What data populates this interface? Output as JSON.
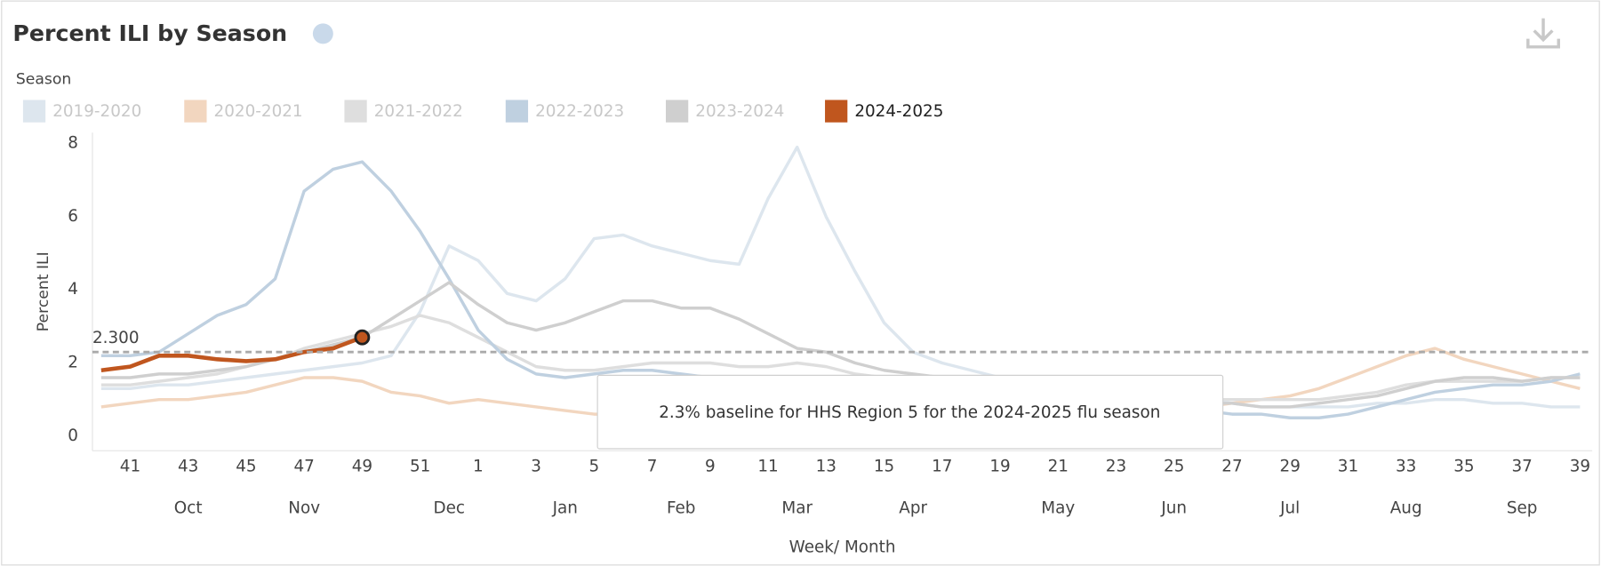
{
  "chart_data": {
    "type": "line",
    "title": "Percent ILI by Season",
    "legend_title": "Season",
    "y_label": "Percent ILI",
    "x_label": "Week/ Month",
    "categories": [
      null,
      "41",
      null,
      "43",
      null,
      "45",
      null,
      "47",
      null,
      "49",
      null,
      "51",
      null,
      "1",
      null,
      "3",
      null,
      "5",
      null,
      "7",
      null,
      "9",
      null,
      "11",
      null,
      "13",
      null,
      "15",
      null,
      "17",
      null,
      "19",
      null,
      "21",
      null,
      "23",
      null,
      "25",
      null,
      "27",
      null,
      "29",
      null,
      "31",
      null,
      "33",
      null,
      "35",
      null,
      "37",
      null,
      "39"
    ],
    "months": [
      null,
      null,
      null,
      "Oct",
      null,
      null,
      null,
      "Nov",
      null,
      null,
      null,
      null,
      "Dec",
      null,
      null,
      null,
      "Jan",
      null,
      null,
      null,
      "Feb",
      null,
      null,
      null,
      "Mar",
      null,
      null,
      null,
      "Apr",
      null,
      null,
      null,
      null,
      "May",
      null,
      null,
      null,
      "Jun",
      null,
      null,
      null,
      "Jul",
      null,
      null,
      null,
      "Aug",
      null,
      null,
      null,
      "Sep",
      null,
      null
    ],
    "ylim": [
      -0.4,
      8.3
    ],
    "yticks": [
      0,
      2,
      4,
      6,
      8
    ],
    "baseline": {
      "value": 2.3,
      "label": "2.300"
    },
    "tooltip": "2.3% baseline for HHS Region 5 for the 2024-2025 flu season",
    "series": [
      {
        "name": "2019-2020",
        "color": "#dde6ee",
        "values": [
          1.3,
          1.3,
          1.4,
          1.4,
          1.5,
          1.6,
          1.7,
          1.8,
          1.9,
          2.0,
          2.2,
          3.4,
          5.2,
          4.8,
          3.9,
          3.7,
          4.3,
          5.4,
          5.5,
          5.2,
          5.0,
          4.8,
          4.7,
          6.5,
          7.9,
          6.0,
          4.5,
          3.1,
          2.3,
          2.0,
          1.8,
          1.6,
          1.5,
          1.4,
          1.3,
          1.2,
          1.1,
          1.0,
          1.0,
          0.9,
          0.8,
          0.8,
          0.8,
          0.8,
          0.9,
          0.9,
          1.0,
          1.0,
          0.9,
          0.9,
          0.8,
          0.8
        ]
      },
      {
        "name": "2020-2021",
        "color": "#f2d6bf",
        "values": [
          0.8,
          0.9,
          1.0,
          1.0,
          1.1,
          1.2,
          1.4,
          1.6,
          1.6,
          1.5,
          1.2,
          1.1,
          0.9,
          1.0,
          0.9,
          0.8,
          0.7,
          0.6,
          0.6,
          0.6,
          0.6,
          0.6,
          0.6,
          0.6,
          0.6,
          0.6,
          0.6,
          0.6,
          0.6,
          0.6,
          0.6,
          0.6,
          0.6,
          0.7,
          0.7,
          0.7,
          0.7,
          0.8,
          0.8,
          0.9,
          1.0,
          1.1,
          1.3,
          1.6,
          1.9,
          2.2,
          2.4,
          2.1,
          1.9,
          1.7,
          1.5,
          1.3
        ]
      },
      {
        "name": "2021-2022",
        "color": "#dedede",
        "values": [
          1.4,
          1.4,
          1.5,
          1.6,
          1.7,
          1.9,
          2.1,
          2.4,
          2.6,
          2.8,
          3.0,
          3.3,
          3.1,
          2.7,
          2.3,
          1.9,
          1.8,
          1.8,
          1.9,
          2.0,
          2.0,
          2.0,
          1.9,
          1.9,
          2.0,
          1.9,
          1.7,
          1.6,
          1.5,
          1.4,
          1.3,
          1.2,
          1.2,
          1.1,
          1.1,
          1.0,
          1.0,
          1.0,
          1.0,
          1.0,
          1.0,
          1.0,
          1.0,
          1.1,
          1.2,
          1.4,
          1.5,
          1.5,
          1.5,
          1.5,
          1.6,
          1.6
        ]
      },
      {
        "name": "2022-2023",
        "color": "#bfd0e0",
        "values": [
          2.2,
          2.2,
          2.3,
          2.8,
          3.3,
          3.6,
          4.3,
          6.7,
          7.3,
          7.5,
          6.7,
          5.6,
          4.3,
          2.9,
          2.1,
          1.7,
          1.6,
          1.7,
          1.8,
          1.8,
          1.7,
          1.6,
          1.6,
          1.6,
          1.6,
          1.6,
          1.5,
          1.4,
          1.3,
          1.2,
          1.1,
          1.0,
          1.0,
          0.9,
          0.9,
          0.8,
          0.8,
          0.7,
          0.7,
          0.6,
          0.6,
          0.5,
          0.5,
          0.6,
          0.8,
          1.0,
          1.2,
          1.3,
          1.4,
          1.4,
          1.5,
          1.7
        ]
      },
      {
        "name": "2023-2024",
        "color": "#cfcfcf",
        "values": [
          1.6,
          1.6,
          1.7,
          1.7,
          1.8,
          1.9,
          2.1,
          2.3,
          2.5,
          2.7,
          3.2,
          3.7,
          4.2,
          3.6,
          3.1,
          2.9,
          3.1,
          3.4,
          3.7,
          3.7,
          3.5,
          3.5,
          3.2,
          2.8,
          2.4,
          2.3,
          2.0,
          1.8,
          1.7,
          1.6,
          1.5,
          1.4,
          1.3,
          1.2,
          1.1,
          1.0,
          1.0,
          0.9,
          0.9,
          0.9,
          0.8,
          0.8,
          0.9,
          1.0,
          1.1,
          1.3,
          1.5,
          1.6,
          1.6,
          1.5,
          1.6,
          1.6
        ]
      },
      {
        "name": "2024-2025",
        "color": "#c0561e",
        "highlight": true,
        "values": [
          1.8,
          1.9,
          2.2,
          2.2,
          2.1,
          2.05,
          2.1,
          2.3,
          2.4,
          2.7,
          null,
          null,
          null,
          null,
          null,
          null,
          null,
          null,
          null,
          null,
          null,
          null,
          null,
          null,
          null,
          null,
          null,
          null,
          null,
          null,
          null,
          null,
          null,
          null,
          null,
          null,
          null,
          null,
          null,
          null,
          null,
          null,
          null,
          null,
          null,
          null,
          null,
          null,
          null,
          null,
          null,
          null
        ]
      }
    ]
  }
}
